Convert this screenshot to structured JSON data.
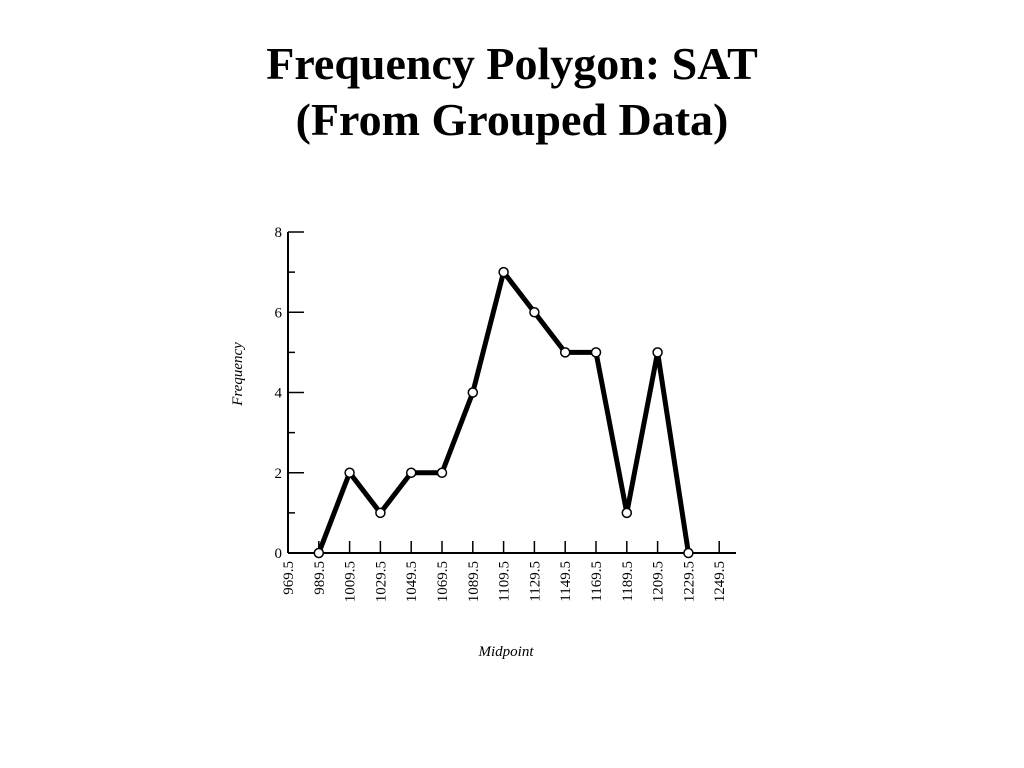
{
  "slide": {
    "title_line1": "Frequency Polygon: SAT",
    "title_line2": "(From Grouped Data)"
  },
  "chart_data": {
    "type": "line",
    "xlabel": "Midpoint",
    "ylabel": "Frequency",
    "ylim": [
      0,
      8
    ],
    "yticks": [
      0,
      2,
      4,
      6,
      8
    ],
    "categories": [
      "969.5",
      "989.5",
      "1009.5",
      "1029.5",
      "1049.5",
      "1069.5",
      "1089.5",
      "1109.5",
      "1129.5",
      "1149.5",
      "1169.5",
      "1189.5",
      "1209.5",
      "1229.5",
      "1249.5"
    ],
    "series": [
      {
        "x": [
          "989.5",
          "1009.5",
          "1029.5",
          "1049.5",
          "1069.5",
          "1089.5",
          "1109.5",
          "1129.5",
          "1149.5",
          "1169.5",
          "1189.5",
          "1209.5",
          "1229.5"
        ],
        "values": [
          0,
          2,
          1,
          2,
          2,
          4,
          7,
          6,
          5,
          5,
          1,
          5,
          0
        ]
      }
    ],
    "grid": false,
    "line_color": "#000000",
    "marker_fill": "#ffffff"
  }
}
